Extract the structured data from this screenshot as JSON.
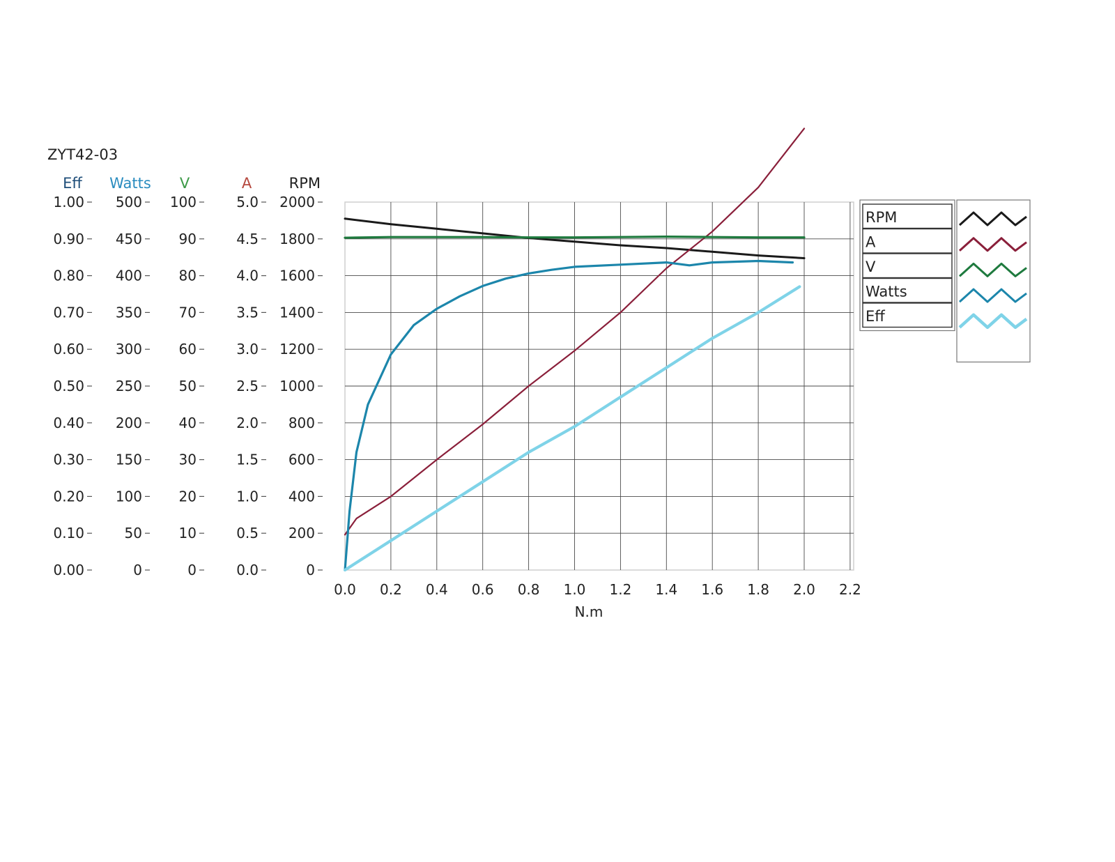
{
  "chart_data": {
    "type": "line",
    "title": "ZYT42-03",
    "xlabel": "N.m",
    "x_ticks": [
      "0.0",
      "0.2",
      "0.4",
      "0.6",
      "0.8",
      "1.0",
      "1.2",
      "1.4",
      "1.6",
      "1.8",
      "2.0",
      "2.2"
    ],
    "xlim": [
      0,
      2.2
    ],
    "grid": true,
    "legend_position": "right",
    "y_axes": [
      {
        "key": "eff",
        "label": "Eff",
        "color": "#1f4e79",
        "ylim": [
          0,
          1.0
        ],
        "ticks": [
          "0.00",
          "0.10",
          "0.20",
          "0.30",
          "0.40",
          "0.50",
          "0.60",
          "0.70",
          "0.80",
          "0.90",
          "1.00"
        ]
      },
      {
        "key": "watts",
        "label": "Watts",
        "color": "#2a8cbf",
        "ylim": [
          0,
          500
        ],
        "ticks": [
          "0",
          "50",
          "100",
          "150",
          "200",
          "250",
          "300",
          "350",
          "400",
          "450",
          "500"
        ]
      },
      {
        "key": "v",
        "label": "V",
        "color": "#3c9a47",
        "ylim": [
          0,
          100
        ],
        "ticks": [
          "0",
          "10",
          "20",
          "30",
          "40",
          "50",
          "60",
          "70",
          "80",
          "90",
          "100"
        ]
      },
      {
        "key": "a",
        "label": "A",
        "color": "#b5483e",
        "ylim": [
          0,
          5.0
        ],
        "ticks": [
          "0.0",
          "0.5",
          "1.0",
          "1.5",
          "2.0",
          "2.5",
          "3.0",
          "3.5",
          "4.0",
          "4.5",
          "5.0"
        ]
      },
      {
        "key": "rpm",
        "label": "RPM",
        "color": "#222222",
        "ylim": [
          0,
          2000
        ],
        "ticks": [
          "0",
          "200",
          "400",
          "600",
          "800",
          "1000",
          "1200",
          "1400",
          "1600",
          "1800",
          "2000"
        ]
      }
    ],
    "series": [
      {
        "name": "RPM",
        "axis": "rpm",
        "color": "#1a1a1a",
        "x": [
          0.0,
          0.2,
          0.4,
          0.6,
          0.8,
          1.0,
          1.2,
          1.4,
          1.6,
          1.8,
          2.0
        ],
        "y": [
          1910,
          1880,
          1855,
          1830,
          1805,
          1785,
          1765,
          1750,
          1730,
          1710,
          1695
        ]
      },
      {
        "name": "A",
        "axis": "a",
        "color": "#8a1f3a",
        "x": [
          0.0,
          0.05,
          0.2,
          0.4,
          0.6,
          0.8,
          1.0,
          1.2,
          1.4,
          1.6,
          1.8,
          2.0
        ],
        "y": [
          0.48,
          0.7,
          1.0,
          1.5,
          1.98,
          2.5,
          2.98,
          3.5,
          4.1,
          4.6,
          5.2,
          6.0
        ]
      },
      {
        "name": "V",
        "axis": "v",
        "color": "#1e7a3e",
        "x": [
          0.0,
          0.2,
          0.4,
          0.6,
          0.8,
          1.0,
          1.2,
          1.4,
          1.6,
          1.8,
          2.0
        ],
        "y": [
          90.3,
          90.5,
          90.5,
          90.5,
          90.4,
          90.4,
          90.5,
          90.6,
          90.5,
          90.4,
          90.4
        ]
      },
      {
        "name": "Watts",
        "axis": "watts",
        "color": "#1c86ab",
        "x": [
          0.0,
          0.02,
          0.05,
          0.1,
          0.2,
          0.3,
          0.4,
          0.5,
          0.6,
          0.7,
          0.8,
          0.9,
          1.0,
          1.2,
          1.4,
          1.5,
          1.6,
          1.8,
          1.95
        ],
        "y": [
          0,
          80,
          160,
          225,
          293,
          333,
          355,
          372,
          386,
          396,
          403,
          408,
          412,
          415,
          418,
          414,
          418,
          420,
          418
        ]
      },
      {
        "name": "Eff",
        "axis": "eff",
        "color": "#7fd3e8",
        "x": [
          0.0,
          0.2,
          0.4,
          0.6,
          0.8,
          1.0,
          1.2,
          1.4,
          1.6,
          1.8,
          1.98
        ],
        "y": [
          0.0,
          0.08,
          0.16,
          0.24,
          0.32,
          0.39,
          0.47,
          0.55,
          0.63,
          0.7,
          0.77
        ]
      }
    ]
  }
}
